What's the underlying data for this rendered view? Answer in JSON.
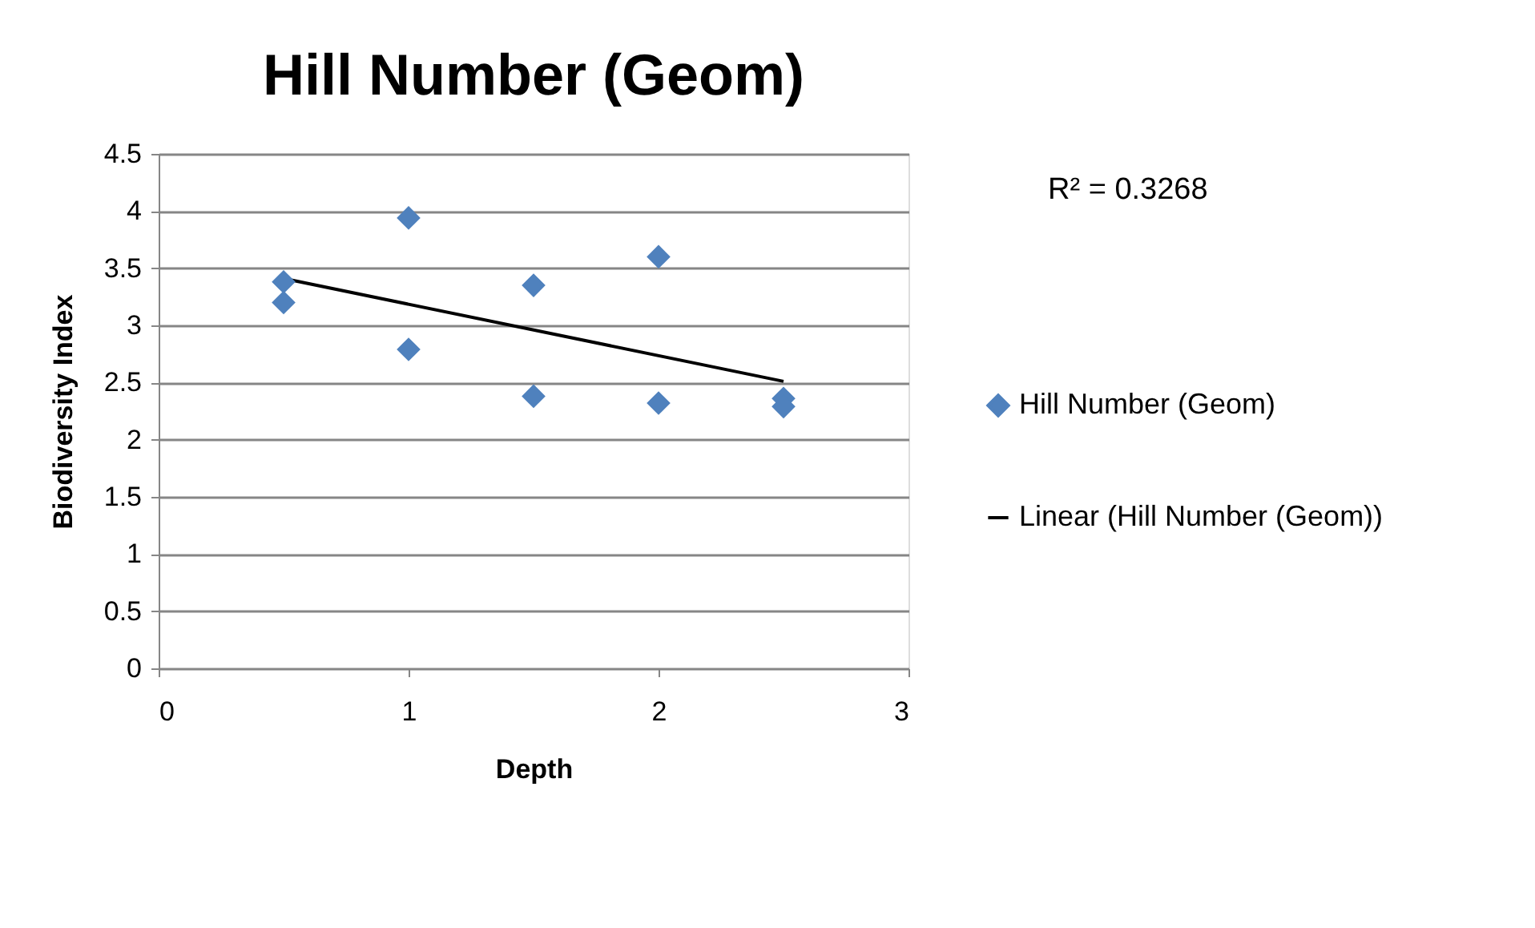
{
  "chart_data": {
    "type": "scatter",
    "title": "Hill Number (Geom)",
    "xlabel": "Depth",
    "ylabel": "Biodiversity Index",
    "xlim": [
      0,
      3
    ],
    "xticks": [
      0,
      1,
      2,
      3
    ],
    "ylim": [
      0,
      4.5
    ],
    "yticks": [
      0,
      0.5,
      1,
      1.5,
      2,
      2.5,
      3,
      3.5,
      4,
      4.5
    ],
    "grid": "y",
    "legend": "right",
    "annotations": [
      "R² = 0.3268"
    ],
    "series": [
      {
        "name": "Hill Number (Geom)",
        "marker": "diamond",
        "color": "#4f81bd",
        "x": [
          0.5,
          0.5,
          1,
          1,
          1.5,
          1.5,
          2,
          2,
          2.5,
          2.5
        ],
        "values": [
          3.38,
          3.2,
          3.94,
          2.79,
          3.35,
          2.38,
          3.6,
          2.32,
          2.36,
          2.29
        ]
      },
      {
        "name": "Linear (Hill Number (Geom))",
        "type": "line",
        "color": "#000000",
        "line_style": "solid",
        "x": [
          0.5,
          2.5
        ],
        "values": [
          3.41,
          2.51
        ]
      }
    ]
  }
}
